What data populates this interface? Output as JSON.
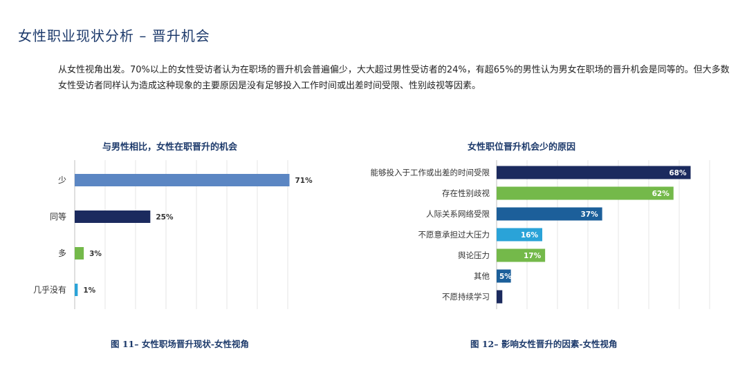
{
  "page": {
    "title": "女性职业现状分析 – 晋升机会",
    "intro": "从女性视角出发。70%以上的女性受访者认为在职场的晋升机会普遍偏少，大大超过男性受访者的24%，有超65%的男性认为男女在职场的晋升机会是同等的。但大多数女性受访者同样认为造成这种现象的主要原因是没有足够投入工作时间或出差时间受限、性别歧视等因素。"
  },
  "chart_data": [
    {
      "type": "bar",
      "orientation": "horizontal",
      "title": "与男性相比，女性在职晋升的机会",
      "caption": "图 11– 女性职场晋升现状-女性视角",
      "categories": [
        "少",
        "同等",
        "多",
        "几乎没有"
      ],
      "values": [
        71,
        25,
        3,
        1
      ],
      "value_labels": [
        "71%",
        "25%",
        "3%",
        "1%"
      ],
      "colors": [
        "#5b86c3",
        "#1b2a5e",
        "#74b94a",
        "#2aa3d8"
      ],
      "xlim": [
        0,
        75
      ],
      "grid": true,
      "legend": "none"
    },
    {
      "type": "bar",
      "orientation": "horizontal",
      "title": "女性职位晋升机会少的原因",
      "caption": "图 12– 影响女性晋升的因素-女性视角",
      "categories": [
        "能够投入于工作或出差的时间受限",
        "存在性别歧视",
        "人际关系网络受限",
        "不愿意承担过大压力",
        "舆论压力",
        "其他",
        "不愿持续学习"
      ],
      "values": [
        68,
        62,
        37,
        16,
        17,
        5,
        2
      ],
      "value_labels": [
        "68%",
        "62%",
        "37%",
        "16%",
        "17%",
        "5%",
        ""
      ],
      "colors": [
        "#1b2a5e",
        "#74b94a",
        "#1c5f9a",
        "#2aa3d8",
        "#74b94a",
        "#1c5f9a",
        "#1b2a5e"
      ],
      "xlim": [
        0,
        80
      ],
      "grid": true,
      "legend": "none"
    }
  ]
}
